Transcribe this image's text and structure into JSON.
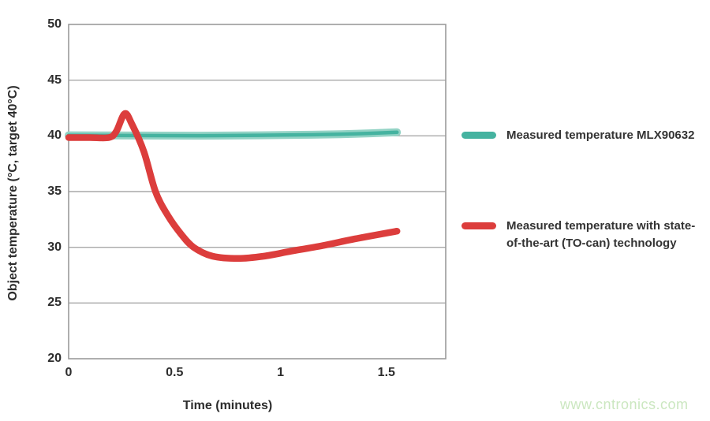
{
  "watermark": {
    "text": "www.cntronics.com",
    "color": "#cbe7c0"
  },
  "chart_data": {
    "type": "line",
    "title": "",
    "xlabel": "Time (minutes)",
    "ylabel": "Object temperature (°C, target 40°C)",
    "xlim": [
      0,
      1.78
    ],
    "ylim": [
      20,
      50
    ],
    "xticks": [
      "0",
      "0.5",
      "1",
      "1.5"
    ],
    "xtick_values": [
      0,
      0.5,
      1,
      1.5
    ],
    "yticks": [
      50,
      45,
      40,
      35,
      30,
      25,
      20
    ],
    "grid": "horizontal",
    "legend_position": "right",
    "series": [
      {
        "name": "Measured temperature MLX90632",
        "color": "#45b3a0",
        "halo_color": "#93d3c5",
        "width": 4.5,
        "halo_width": 10,
        "points": [
          [
            0,
            40.05
          ],
          [
            0.3,
            40.03
          ],
          [
            0.6,
            40.02
          ],
          [
            0.9,
            40.05
          ],
          [
            1.15,
            40.1
          ],
          [
            1.35,
            40.18
          ],
          [
            1.55,
            40.32
          ]
        ]
      },
      {
        "name": "Measured temperature with state-of-the-art (TO-can) technology",
        "color": "#dc3d3c",
        "width": 8.5,
        "points": [
          [
            0,
            39.85
          ],
          [
            0.1,
            39.85
          ],
          [
            0.19,
            39.85
          ],
          [
            0.225,
            40.4
          ],
          [
            0.265,
            42.0
          ],
          [
            0.3,
            41.0
          ],
          [
            0.355,
            38.6
          ],
          [
            0.41,
            35.0
          ],
          [
            0.47,
            32.8
          ],
          [
            0.53,
            31.2
          ],
          [
            0.59,
            30.0
          ],
          [
            0.68,
            29.2
          ],
          [
            0.8,
            29.0
          ],
          [
            0.92,
            29.2
          ],
          [
            1.05,
            29.65
          ],
          [
            1.2,
            30.15
          ],
          [
            1.35,
            30.75
          ],
          [
            1.55,
            31.45
          ]
        ]
      }
    ]
  }
}
